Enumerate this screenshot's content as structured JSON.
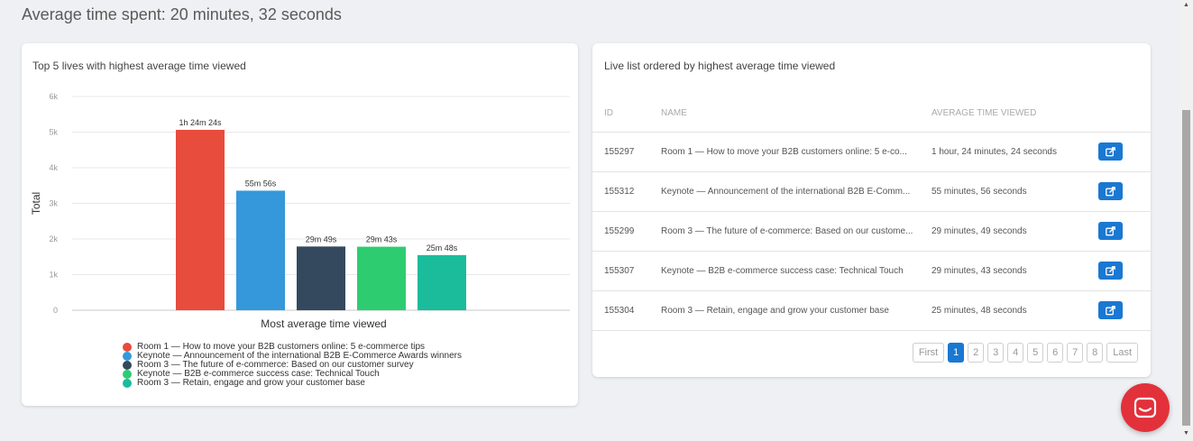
{
  "page": {
    "title": "Average time spent: 20 minutes, 32 seconds"
  },
  "chart_card": {
    "title": "Top 5 lives with highest average time viewed"
  },
  "chart_data": {
    "type": "bar",
    "title": "Top 5 lives with highest average time viewed",
    "xlabel": "Most average time viewed",
    "ylabel": "Total",
    "ylim": [
      0,
      6000
    ],
    "yticks": [
      "0",
      "1k",
      "2k",
      "3k",
      "4k",
      "5k",
      "6k"
    ],
    "grid": true,
    "legend_position": "bottom",
    "categories": [
      "Room 1 — How to move your B2B customers online: 5 e-commerce tips",
      "Keynote — Announcement of the international B2B E-Commerce Awards winners",
      "Room 3 — The future of e-commerce: Based on our customer survey",
      "Keynote — B2B e-commerce success case: Technical Touch",
      "Room 3 — Retain, engage and grow your customer base"
    ],
    "values": [
      5064,
      3356,
      1789,
      1783,
      1548
    ],
    "data_labels": [
      "1h 24m 24s",
      "55m 56s",
      "29m 49s",
      "29m 43s",
      "25m 48s"
    ],
    "colors": [
      "#e74c3c",
      "#3498db",
      "#34495e",
      "#2ecc71",
      "#1abc9c"
    ]
  },
  "table_card": {
    "title": "Live list ordered by highest average time viewed",
    "columns": {
      "id": "ID",
      "name": "NAME",
      "avg": "AVERAGE TIME VIEWED"
    },
    "rows": [
      {
        "id": "155297",
        "name": "Room 1 — How to move your B2B customers online: 5 e-co...",
        "avg": "1 hour, 24 minutes, 24 seconds"
      },
      {
        "id": "155312",
        "name": "Keynote — Announcement of the international B2B E-Comm...",
        "avg": "55 minutes, 56 seconds"
      },
      {
        "id": "155299",
        "name": "Room 3 — The future of e-commerce: Based on our custome...",
        "avg": "29 minutes, 49 seconds"
      },
      {
        "id": "155307",
        "name": "Keynote — B2B e-commerce success case: Technical Touch",
        "avg": "29 minutes, 43 seconds"
      },
      {
        "id": "155304",
        "name": "Room 3 — Retain, engage and grow your customer base",
        "avg": "25 minutes, 48 seconds"
      }
    ],
    "pagination": {
      "first": "First",
      "pages": [
        "1",
        "2",
        "3",
        "4",
        "5",
        "6",
        "7",
        "8"
      ],
      "active": "1",
      "last": "Last"
    }
  },
  "colors": {
    "accent": "#1a78d2",
    "chat": "#e2313b"
  },
  "icons": {
    "edit": "external-edit-icon",
    "chat": "chat-icon"
  }
}
